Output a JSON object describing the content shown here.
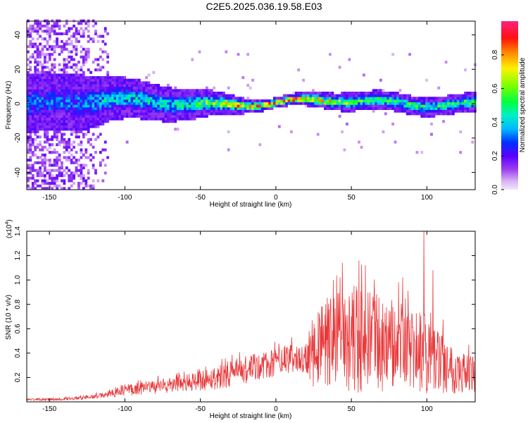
{
  "title": "C2E5.2025.036.19.58.E03",
  "colorbar": {
    "label": "Normalized spectral amplitude",
    "ticks": [
      "0.0",
      "0.2",
      "0.4",
      "0.6",
      "0.8"
    ],
    "tick_values": [
      0.0,
      0.2,
      0.4,
      0.6,
      0.8
    ],
    "range": [
      0,
      1
    ]
  },
  "chart_data": [
    {
      "type": "heatmap",
      "panel": "spectrogram",
      "xlabel": "Height of straight line (km)",
      "ylabel": "Frequency (Hz)",
      "xlim": [
        -165,
        132
      ],
      "ylim": [
        -50,
        48
      ],
      "xticks": [
        -150,
        -100,
        -50,
        0,
        50,
        100
      ],
      "xtick_labels": [
        "-150",
        "-100",
        "-50",
        "0",
        "50",
        "100"
      ],
      "yticks": [
        -40,
        -20,
        0,
        20,
        40
      ],
      "ytick_labels": [
        "-40",
        "-20",
        "0",
        "20",
        "40"
      ],
      "description_series": {
        "band_center_hz": 0,
        "band_halfwidth_hz": [
          [
            -130,
            12
          ],
          [
            -110,
            9
          ],
          [
            -50,
            6
          ],
          [
            -20,
            3
          ],
          [
            0,
            2
          ],
          [
            20,
            3
          ],
          [
            50,
            4
          ],
          [
            132,
            4
          ]
        ],
        "peak_amplitude": [
          [
            -130,
            0.35
          ],
          [
            -110,
            0.45
          ],
          [
            -60,
            0.5
          ],
          [
            -20,
            0.85
          ],
          [
            0,
            0.95
          ],
          [
            20,
            0.9
          ],
          [
            50,
            0.6
          ],
          [
            100,
            0.55
          ],
          [
            132,
            0.6
          ]
        ],
        "broadband_noise_until_km": -112
      }
    },
    {
      "type": "line",
      "panel": "snr",
      "xlabel": "Height of straight line (km)",
      "ylabel": "SNR (10 * v/v)",
      "y_multiplier_label": "(x10",
      "y_multiplier_exponent": "4",
      "y_multiplier_close": ")",
      "xlim": [
        -165,
        132
      ],
      "ylim": [
        0,
        1.4
      ],
      "xticks": [
        -150,
        -100,
        -50,
        0,
        50,
        100
      ],
      "xtick_labels": [
        "-150",
        "-100",
        "-50",
        "0",
        "50",
        "100"
      ],
      "yticks": [
        0.2,
        0.4,
        0.6,
        0.8,
        1.0,
        1.2,
        1.4
      ],
      "ytick_labels": [
        "0.2",
        "0.4",
        "0.6",
        "0.8",
        "1.0",
        "1.2",
        "1.4"
      ],
      "color": "#e8383a",
      "envelope_x": [
        -165,
        -150,
        -130,
        -115,
        -100,
        -80,
        -60,
        -40,
        -20,
        -5,
        10,
        20,
        25,
        30,
        40,
        50,
        60,
        70,
        80,
        90,
        100,
        110,
        120,
        132
      ],
      "envelope_mean": [
        0.02,
        0.02,
        0.03,
        0.05,
        0.1,
        0.12,
        0.15,
        0.2,
        0.26,
        0.3,
        0.35,
        0.36,
        0.42,
        0.48,
        0.5,
        0.52,
        0.5,
        0.48,
        0.45,
        0.42,
        0.38,
        0.32,
        0.26,
        0.22
      ],
      "envelope_spread": [
        0.01,
        0.01,
        0.015,
        0.02,
        0.05,
        0.06,
        0.07,
        0.1,
        0.12,
        0.12,
        0.12,
        0.12,
        0.3,
        0.35,
        0.4,
        0.45,
        0.42,
        0.4,
        0.38,
        0.35,
        0.32,
        0.25,
        0.2,
        0.15
      ],
      "peaks": [
        [
          98,
          1.4
        ],
        [
          44,
          1.14
        ],
        [
          55,
          1.16
        ],
        [
          38,
          1.0
        ],
        [
          84,
          1.02
        ],
        [
          104,
          1.08
        ]
      ]
    }
  ]
}
